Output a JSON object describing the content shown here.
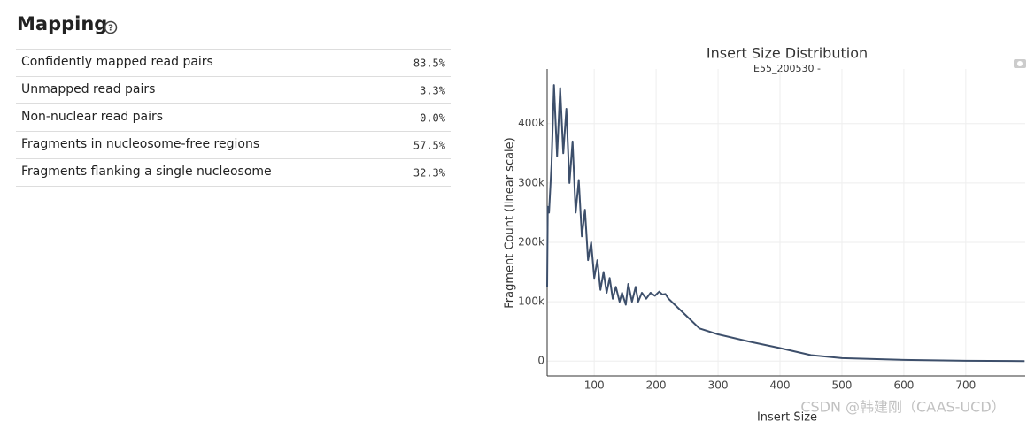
{
  "header": {
    "title": "Mapping"
  },
  "table": {
    "rows": [
      [
        "Confidently mapped read pairs",
        "83.5%"
      ],
      [
        "Unmapped read pairs",
        "3.3%"
      ],
      [
        "Non-nuclear read pairs",
        "0.0%"
      ],
      [
        "Fragments in nucleosome-free regions",
        "57.5%"
      ],
      [
        "Fragments flanking a single nucleosome",
        "32.3%"
      ]
    ]
  },
  "chart_data": {
    "type": "line",
    "title": "Insert Size Distribution",
    "subtitle": "E55_200530 -",
    "x_label": "Insert Size",
    "y_label": "Fragment Count (linear scale)",
    "color": "#3d4f6b",
    "grid": true,
    "x": [
      24,
      25,
      27,
      31,
      35,
      40,
      45,
      50,
      55,
      60,
      65,
      70,
      75,
      80,
      85,
      90,
      95,
      100,
      105,
      110,
      115,
      120,
      125,
      130,
      135,
      141,
      145,
      151,
      155,
      161,
      167,
      171,
      177,
      184,
      191,
      198,
      205,
      210,
      215,
      220,
      230,
      250,
      270,
      300,
      350,
      400,
      450,
      500,
      600,
      700,
      795
    ],
    "values": [
      125000,
      260000,
      250000,
      330000,
      465000,
      345000,
      460000,
      350000,
      425000,
      300000,
      370000,
      250000,
      305000,
      210000,
      255000,
      170000,
      200000,
      140000,
      170000,
      120000,
      150000,
      115000,
      140000,
      105000,
      125000,
      100000,
      115000,
      95000,
      130000,
      100000,
      125000,
      100000,
      115000,
      105000,
      115000,
      110000,
      117000,
      112000,
      113000,
      105000,
      95000,
      75000,
      55000,
      45000,
      33000,
      22000,
      10000,
      5000,
      2000,
      500,
      0
    ],
    "xlim": [
      24,
      796
    ],
    "ylim": [
      -25000,
      492000
    ],
    "xticks": [
      100,
      200,
      300,
      400,
      500,
      600,
      700
    ],
    "yticks": [
      0,
      {
        "value": 100000,
        "label": "100k"
      },
      {
        "value": 200000,
        "label": "200k"
      },
      {
        "value": 300000,
        "label": "300k"
      },
      {
        "value": 400000,
        "label": "400k"
      }
    ]
  },
  "watermark": "CSDN @韩建刚（CAAS-UCD）"
}
